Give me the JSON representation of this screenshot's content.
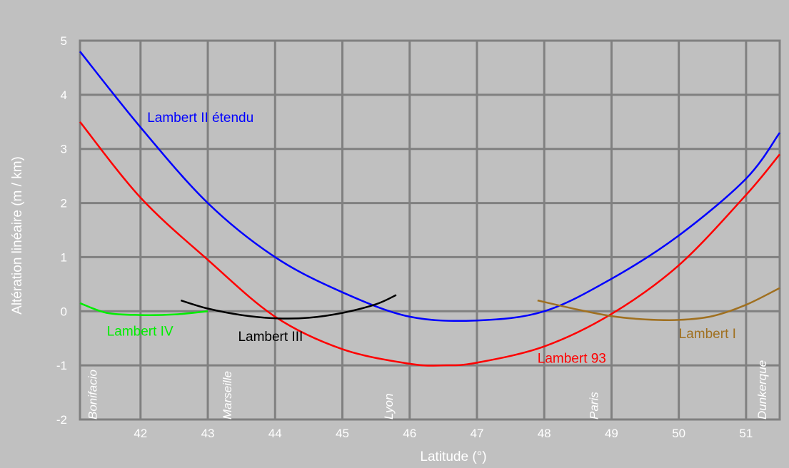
{
  "chart_data": {
    "type": "line",
    "title": "",
    "xlabel": "Latitude (°)",
    "ylabel": "Altération linéaire (m / km)",
    "xlim": [
      41.1,
      51.5
    ],
    "ylim": [
      -2,
      5
    ],
    "xticks": [
      42,
      43,
      44,
      45,
      46,
      47,
      48,
      49,
      50,
      51
    ],
    "yticks": [
      5,
      4,
      3,
      2,
      1,
      0,
      -1,
      -2
    ],
    "grid": true,
    "legend": "inline labels",
    "series": [
      {
        "name": "Lambert II étendu",
        "color": "#0000ff",
        "x": [
          41.1,
          42.0,
          43.0,
          44.0,
          45.0,
          46.0,
          47.0,
          48.0,
          49.0,
          50.0,
          51.0,
          51.5
        ],
        "y": [
          4.8,
          3.4,
          2.0,
          1.0,
          0.35,
          -0.1,
          -0.17,
          0.0,
          0.6,
          1.4,
          2.45,
          3.3
        ]
      },
      {
        "name": "Lambert 93",
        "color": "#ff0000",
        "x": [
          41.1,
          42.0,
          43.0,
          44.0,
          45.0,
          46.0,
          46.5,
          47.0,
          48.0,
          49.0,
          50.0,
          51.0,
          51.5
        ],
        "y": [
          3.5,
          2.1,
          0.95,
          -0.1,
          -0.7,
          -0.97,
          -1.0,
          -0.95,
          -0.65,
          -0.05,
          0.85,
          2.15,
          2.9
        ]
      },
      {
        "name": "Lambert IV",
        "color": "#00ee00",
        "x": [
          41.1,
          41.5,
          42.0,
          42.5,
          43.0
        ],
        "y": [
          0.15,
          -0.03,
          -0.07,
          -0.06,
          0.0
        ]
      },
      {
        "name": "Lambert III",
        "color": "#000000",
        "x": [
          42.6,
          43.0,
          43.5,
          44.0,
          44.5,
          45.0,
          45.5,
          45.8
        ],
        "y": [
          0.2,
          0.05,
          -0.07,
          -0.13,
          -0.12,
          -0.03,
          0.13,
          0.3
        ]
      },
      {
        "name": "Lambert I",
        "color": "#a07020",
        "x": [
          47.9,
          48.5,
          49.0,
          49.5,
          50.0,
          50.5,
          51.0,
          51.5
        ],
        "y": [
          0.2,
          0.03,
          -0.09,
          -0.15,
          -0.16,
          -0.09,
          0.12,
          0.43
        ]
      }
    ],
    "annotations": [
      {
        "text": "Bonifacio",
        "x": 41.35
      },
      {
        "text": "Marseille",
        "x": 43.35
      },
      {
        "text": "Lyon",
        "x": 45.75
      },
      {
        "text": "Paris",
        "x": 48.8
      },
      {
        "text": "Dunkerque",
        "x": 51.3
      }
    ]
  }
}
